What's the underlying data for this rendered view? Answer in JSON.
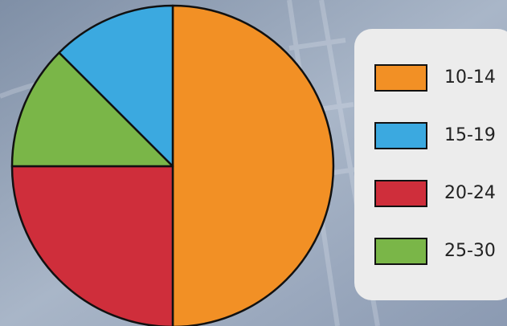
{
  "chart_data": {
    "type": "pie",
    "categories": [
      "10-14",
      "15-19",
      "20-24",
      "25-30"
    ],
    "values": [
      50,
      12.5,
      25,
      12.5
    ],
    "colors": [
      "#f29025",
      "#3ba9e0",
      "#cf2e3b",
      "#7ab648"
    ]
  }
}
